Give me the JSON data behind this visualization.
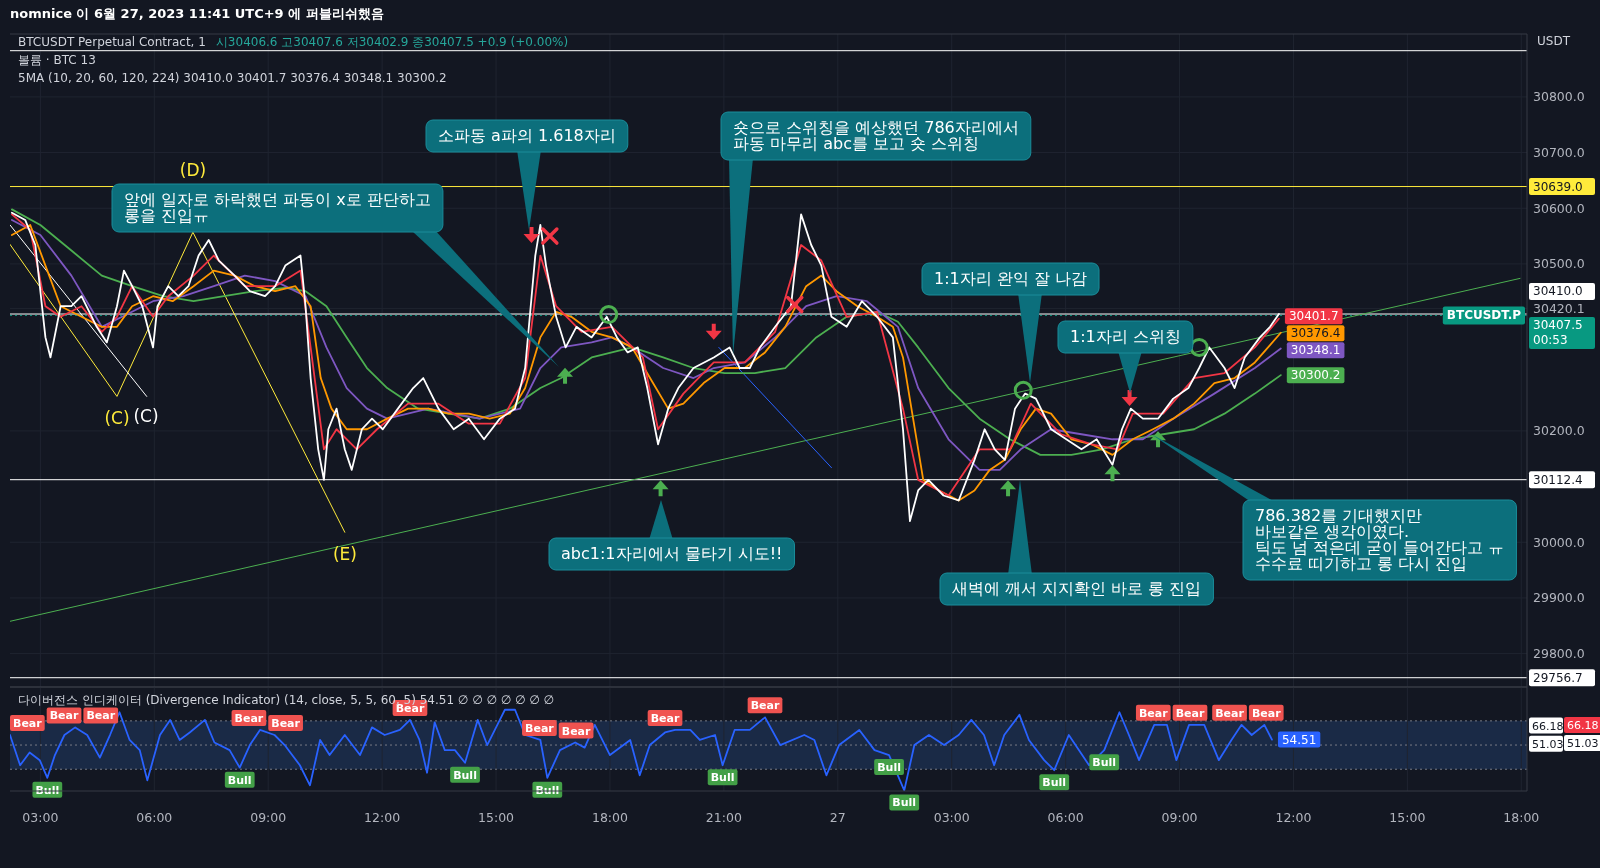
{
  "chart_data": [
    {
      "type": "line",
      "title": "BTCUSDT Perpetual Contract, 1",
      "subtitle": "시30406.6  고30407.6  저30402.9  종30407.5  +0.9 (+0.00%)",
      "ylabel": "USDT",
      "tick_labels": "y",
      "grid": true,
      "xlim": [
        "2023-06-26T02:12",
        "2023-06-27T18:09"
      ],
      "xticks": [
        "2023-06-26T03:00",
        "2023-06-26T06:00",
        "2023-06-26T09:00",
        "2023-06-26T12:00",
        "2023-06-26T15:00",
        "2023-06-26T18:00",
        "2023-06-26T21:00",
        "2023-06-27T00:00",
        "2023-06-27T03:00",
        "2023-06-27T06:00",
        "2023-06-27T09:00",
        "2023-06-27T12:00",
        "2023-06-27T15:00",
        "2023-06-27T18:00"
      ],
      "ylim": [
        29740,
        30913
      ],
      "yticks": [
        {
          "value": 29800,
          "label": "29800.0"
        },
        {
          "value": 29900,
          "label": "29900.0"
        },
        {
          "value": 30000,
          "label": "30000.0"
        },
        {
          "value": 30200,
          "label": "30200.0"
        },
        {
          "value": 30420.1,
          "label": "30420.1"
        },
        {
          "value": 30500,
          "label": "30500.0"
        },
        {
          "value": 30600,
          "label": "30600.0"
        },
        {
          "value": 30700,
          "label": "30700.0"
        },
        {
          "value": 30800,
          "label": "30800.0"
        }
      ],
      "series": [
        {
          "type": "line",
          "color": "#ffeb3b",
          "x": [
            "2023-06-26T02:12",
            "2023-06-26T05:01",
            "2023-06-26T07:01",
            "2023-06-26T11:01"
          ],
          "values": [
            30535,
            30262,
            30557,
            30018
          ]
        },
        {
          "type": "line",
          "color": "#ffffff",
          "x": [
            "2023-06-26T02:12",
            "2023-06-26T05:48"
          ],
          "values": [
            30570,
            30262
          ]
        },
        {
          "type": "line",
          "color": "#4caf50",
          "x": [
            "2023-06-26T02:12",
            "2023-06-27T17:58"
          ],
          "values": [
            29858,
            30474
          ]
        },
        {
          "type": "line",
          "color": "#2962ff",
          "x": [
            "2023-06-26T20:52",
            "2023-06-26T23:50"
          ],
          "values": [
            30350,
            30134
          ]
        },
        {
          "type": "line",
          "color": "#4caf50",
          "x": [
            "2023-06-26T02:15",
            "2023-06-26T03:00",
            "2023-06-26T03:49",
            "2023-06-26T04:37",
            "2023-06-26T05:25",
            "2023-06-26T06:14",
            "2023-06-26T07:02",
            "2023-06-26T07:50",
            "2023-06-26T08:39",
            "2023-06-26T09:27",
            "2023-06-26T09:59",
            "2023-06-26T10:32",
            "2023-06-26T11:04",
            "2023-06-26T11:36",
            "2023-06-26T12:08",
            "2023-06-26T12:57",
            "2023-06-26T13:45",
            "2023-06-26T14:34",
            "2023-06-26T15:22",
            "2023-06-26T16:10",
            "2023-06-26T16:43",
            "2023-06-26T17:31",
            "2023-06-26T18:35",
            "2023-06-26T19:24",
            "2023-06-26T20:12",
            "2023-06-26T21:01",
            "2023-06-26T21:49",
            "2023-06-26T22:37",
            "2023-06-26T23:26",
            "2023-06-27T00:14",
            "2023-06-27T01:02",
            "2023-06-27T01:35",
            "2023-06-27T02:07",
            "2023-06-27T02:55",
            "2023-06-27T03:44",
            "2023-06-27T04:32",
            "2023-06-27T05:20",
            "2023-06-27T06:09",
            "2023-06-27T06:58",
            "2023-06-27T07:46",
            "2023-06-27T08:34",
            "2023-06-27T09:23",
            "2023-06-27T10:11",
            "2023-06-27T10:59",
            "2023-06-27T11:40"
          ],
          "values": [
            30598,
            30570,
            30524,
            30479,
            30460,
            30442,
            30433,
            30442,
            30451,
            30457,
            30451,
            30424,
            30368,
            30313,
            30277,
            30240,
            30231,
            30222,
            30240,
            30277,
            30295,
            30332,
            30350,
            30332,
            30313,
            30304,
            30304,
            30313,
            30368,
            30405,
            30414,
            30396,
            30350,
            30277,
            30222,
            30185,
            30157,
            30157,
            30167,
            30185,
            30194,
            30203,
            30231,
            30267,
            30300.2
          ],
          "value_labels": [
            null,
            null,
            null,
            null,
            null,
            null,
            null,
            null,
            null,
            null,
            null,
            null,
            null,
            null,
            null,
            null,
            null,
            null,
            null,
            null,
            null,
            null,
            null,
            null,
            null,
            null,
            null,
            null,
            null,
            null,
            null,
            null,
            null,
            null,
            null,
            null,
            null,
            null,
            null,
            null,
            null,
            null,
            null,
            null,
            "30300.2"
          ]
        },
        {
          "type": "line",
          "color": "#7e57c2",
          "x": [
            "2023-06-26T02:15",
            "2023-06-26T03:00",
            "2023-06-26T03:49",
            "2023-06-26T04:37",
            "2023-06-26T05:09",
            "2023-06-26T05:58",
            "2023-06-26T06:46",
            "2023-06-26T07:34",
            "2023-06-26T08:23",
            "2023-06-26T09:11",
            "2023-06-26T09:59",
            "2023-06-26T10:32",
            "2023-06-26T11:04",
            "2023-06-26T11:36",
            "2023-06-26T12:08",
            "2023-06-26T13:13",
            "2023-06-26T14:34",
            "2023-06-26T15:38",
            "2023-06-26T16:10",
            "2023-06-26T16:43",
            "2023-06-26T17:31",
            "2023-06-26T18:03",
            "2023-06-26T18:35",
            "2023-06-26T19:24",
            "2023-06-26T20:12",
            "2023-06-26T20:44",
            "2023-06-26T21:33",
            "2023-06-26T22:21",
            "2023-06-26T23:10",
            "2023-06-26T23:58",
            "2023-06-27T00:46",
            "2023-06-27T01:35",
            "2023-06-27T02:07",
            "2023-06-27T02:55",
            "2023-06-27T03:44",
            "2023-06-27T04:16",
            "2023-06-27T04:49",
            "2023-06-27T05:37",
            "2023-06-27T06:25",
            "2023-06-27T07:14",
            "2023-06-27T08:02",
            "2023-06-27T08:50",
            "2023-06-27T09:55",
            "2023-06-27T10:59",
            "2023-06-27T11:40"
          ],
          "values": [
            30579,
            30552,
            30479,
            30387,
            30405,
            30433,
            30442,
            30460,
            30479,
            30469,
            30442,
            30350,
            30277,
            30240,
            30222,
            30240,
            30222,
            30240,
            30313,
            30350,
            30359,
            30368,
            30350,
            30313,
            30295,
            30313,
            30323,
            30368,
            30424,
            30442,
            30433,
            30387,
            30277,
            30185,
            30130,
            30130,
            30167,
            30203,
            30194,
            30185,
            30185,
            30222,
            30267,
            30313,
            30348.1
          ],
          "value_labels": [
            null,
            null,
            null,
            null,
            null,
            null,
            null,
            null,
            null,
            null,
            null,
            null,
            null,
            null,
            null,
            null,
            null,
            null,
            null,
            null,
            null,
            null,
            null,
            null,
            null,
            null,
            null,
            null,
            null,
            null,
            null,
            null,
            null,
            null,
            null,
            null,
            null,
            null,
            null,
            null,
            null,
            null,
            null,
            null,
            "30348.1"
          ]
        },
        {
          "type": "line",
          "color": "#ff9800",
          "x": [
            "2023-06-26T02:15",
            "2023-06-26T02:44",
            "2023-06-26T03:08",
            "2023-06-26T03:32",
            "2023-06-26T04:05",
            "2023-06-26T04:37",
            "2023-06-26T05:01",
            "2023-06-26T05:25",
            "2023-06-26T05:58",
            "2023-06-26T06:29",
            "2023-06-26T07:02",
            "2023-06-26T07:34",
            "2023-06-26T08:07",
            "2023-06-26T08:39",
            "2023-06-26T09:11",
            "2023-06-26T09:43",
            "2023-06-26T10:07",
            "2023-06-26T10:23",
            "2023-06-26T10:40",
            "2023-06-26T11:04",
            "2023-06-26T11:36",
            "2023-06-26T12:08",
            "2023-06-26T12:41",
            "2023-06-26T13:13",
            "2023-06-26T13:45",
            "2023-06-26T14:17",
            "2023-06-26T14:50",
            "2023-06-26T15:22",
            "2023-06-26T15:46",
            "2023-06-26T16:10",
            "2023-06-26T16:35",
            "2023-06-26T16:59",
            "2023-06-26T17:31",
            "2023-06-26T18:03",
            "2023-06-26T18:35",
            "2023-06-26T19:08",
            "2023-06-26T19:32",
            "2023-06-26T19:56",
            "2023-06-26T20:28",
            "2023-06-26T21:01",
            "2023-06-26T21:33",
            "2023-06-26T22:05",
            "2023-06-26T22:37",
            "2023-06-26T23:10",
            "2023-06-26T23:34",
            "2023-06-26T23:58",
            "2023-06-27T00:31",
            "2023-06-27T01:02",
            "2023-06-27T01:27",
            "2023-06-27T01:43",
            "2023-06-27T01:59",
            "2023-06-27T02:15",
            "2023-06-27T02:40",
            "2023-06-27T03:11",
            "2023-06-27T03:36",
            "2023-06-27T04:00",
            "2023-06-27T04:24",
            "2023-06-27T04:49",
            "2023-06-27T05:13",
            "2023-06-27T05:37",
            "2023-06-27T06:09",
            "2023-06-27T06:41",
            "2023-06-27T07:14",
            "2023-06-27T07:46",
            "2023-06-27T08:18",
            "2023-06-27T08:50",
            "2023-06-27T09:23",
            "2023-06-27T09:55",
            "2023-06-27T10:27",
            "2023-06-27T10:59",
            "2023-06-27T11:40"
          ],
          "values": [
            30552,
            30570,
            30497,
            30424,
            30405,
            30387,
            30387,
            30424,
            30442,
            30433,
            30460,
            30488,
            30479,
            30460,
            30451,
            30460,
            30424,
            30295,
            30240,
            30203,
            30203,
            30222,
            30240,
            30240,
            30231,
            30231,
            30222,
            30231,
            30277,
            30368,
            30414,
            30405,
            30378,
            30368,
            30350,
            30286,
            30240,
            30249,
            30286,
            30313,
            30313,
            30341,
            30387,
            30460,
            30479,
            30451,
            30424,
            30405,
            30387,
            30332,
            30222,
            30112,
            30093,
            30075,
            30093,
            30130,
            30148,
            30203,
            30240,
            30231,
            30185,
            30176,
            30157,
            30185,
            30203,
            30222,
            30249,
            30286,
            30295,
            30323,
            30376.4
          ],
          "value_labels": [
            null,
            null,
            null,
            null,
            null,
            null,
            null,
            null,
            null,
            null,
            null,
            null,
            null,
            null,
            null,
            null,
            null,
            null,
            null,
            null,
            null,
            null,
            null,
            null,
            null,
            null,
            null,
            null,
            null,
            null,
            null,
            null,
            null,
            null,
            null,
            null,
            null,
            null,
            null,
            null,
            null,
            null,
            null,
            null,
            null,
            null,
            null,
            null,
            null,
            null,
            null,
            null,
            null,
            null,
            null,
            null,
            null,
            null,
            null,
            null,
            null,
            null,
            null,
            null,
            null,
            null,
            null,
            null,
            null,
            null,
            "30376.4"
          ]
        },
        {
          "type": "line",
          "color": "#f23645",
          "x": [
            "2023-06-26T02:15",
            "2023-06-26T02:44",
            "2023-06-26T03:08",
            "2023-06-26T03:32",
            "2023-06-26T04:05",
            "2023-06-26T04:37",
            "2023-06-26T05:01",
            "2023-06-26T05:25",
            "2023-06-26T05:58",
            "2023-06-26T06:22",
            "2023-06-26T07:02",
            "2023-06-26T07:34",
            "2023-06-26T08:23",
            "2023-06-26T09:11",
            "2023-06-26T09:51",
            "2023-06-26T10:07",
            "2023-06-26T10:28",
            "2023-06-26T10:48",
            "2023-06-26T11:20",
            "2023-06-26T11:52",
            "2023-06-26T12:41",
            "2023-06-26T13:29",
            "2023-06-26T14:17",
            "2023-06-26T15:06",
            "2023-06-26T15:46",
            "2023-06-26T16:10",
            "2023-06-26T16:35",
            "2023-06-26T17:15",
            "2023-06-26T18:03",
            "2023-06-26T18:52",
            "2023-06-26T19:16",
            "2023-06-26T19:56",
            "2023-06-26T20:44",
            "2023-06-26T21:33",
            "2023-06-26T22:21",
            "2023-06-26T23:02",
            "2023-06-26T23:34",
            "2023-06-27T00:14",
            "2023-06-27T01:02",
            "2023-06-27T01:43",
            "2023-06-27T02:07",
            "2023-06-27T02:55",
            "2023-06-27T03:44",
            "2023-06-27T04:32",
            "2023-06-27T05:05",
            "2023-06-27T05:53",
            "2023-06-27T06:41",
            "2023-06-27T07:22",
            "2023-06-27T07:46",
            "2023-06-27T08:34",
            "2023-06-27T09:23",
            "2023-06-27T10:11",
            "2023-06-27T10:59",
            "2023-06-27T11:37"
          ],
          "values": [
            30589,
            30561,
            30424,
            30405,
            30424,
            30378,
            30405,
            30460,
            30405,
            30442,
            30479,
            30515,
            30460,
            30460,
            30488,
            30350,
            30167,
            30203,
            30167,
            30203,
            30249,
            30249,
            30213,
            30213,
            30295,
            30515,
            30424,
            30378,
            30387,
            30332,
            30203,
            30267,
            30323,
            30323,
            30378,
            30534,
            30506,
            30405,
            30414,
            30240,
            30112,
            30084,
            30167,
            30167,
            30249,
            30194,
            30176,
            30167,
            30231,
            30231,
            30295,
            30304,
            30350,
            30401.7
          ],
          "value_labels": [
            null,
            null,
            null,
            null,
            null,
            null,
            null,
            null,
            null,
            null,
            null,
            null,
            null,
            null,
            null,
            null,
            null,
            null,
            null,
            null,
            null,
            null,
            null,
            null,
            null,
            null,
            null,
            null,
            null,
            null,
            null,
            null,
            null,
            null,
            null,
            null,
            null,
            null,
            null,
            null,
            null,
            null,
            null,
            null,
            null,
            null,
            null,
            null,
            null,
            null,
            null,
            null,
            null,
            "30401.7"
          ]
        },
        {
          "type": "line",
          "color": "#ffffff",
          "x": [
            "2023-06-26T02:15",
            "2023-06-26T02:36",
            "2023-06-26T02:52",
            "2023-06-26T03:08",
            "2023-06-26T03:16",
            "2023-06-26T03:32",
            "2023-06-26T03:49",
            "2023-06-26T04:05",
            "2023-06-26T04:29",
            "2023-06-26T04:45",
            "2023-06-26T05:01",
            "2023-06-26T05:12",
            "2023-06-26T05:25",
            "2023-06-26T05:41",
            "2023-06-26T05:58",
            "2023-06-26T06:05",
            "2023-06-26T06:22",
            "2023-06-26T06:38",
            "2023-06-26T06:54",
            "2023-06-26T07:10",
            "2023-06-26T07:26",
            "2023-06-26T07:42",
            "2023-06-26T08:07",
            "2023-06-26T08:31",
            "2023-06-26T08:55",
            "2023-06-26T09:11",
            "2023-06-26T09:27",
            "2023-06-26T09:51",
            "2023-06-26T09:59",
            "2023-06-26T10:07",
            "2023-06-26T10:19",
            "2023-06-26T10:28",
            "2023-06-26T10:35",
            "2023-06-26T10:48",
            "2023-06-26T11:01",
            "2023-06-26T11:12",
            "2023-06-26T11:28",
            "2023-06-26T11:44",
            "2023-06-26T12:01",
            "2023-06-26T12:25",
            "2023-06-26T12:49",
            "2023-06-26T13:05",
            "2023-06-26T13:29",
            "2023-06-26T13:53",
            "2023-06-26T14:17",
            "2023-06-26T14:41",
            "2023-06-26T15:06",
            "2023-06-26T15:30",
            "2023-06-26T15:46",
            "2023-06-26T16:02",
            "2023-06-26T16:10",
            "2023-06-26T16:19",
            "2023-06-26T16:35",
            "2023-06-26T16:50",
            "2023-06-26T17:07",
            "2023-06-26T17:31",
            "2023-06-26T17:55",
            "2023-06-26T18:11",
            "2023-06-26T18:28",
            "2023-06-26T18:44",
            "2023-06-26T18:59",
            "2023-06-26T19:16",
            "2023-06-26T19:32",
            "2023-06-26T19:48",
            "2023-06-26T20:12",
            "2023-06-26T20:44",
            "2023-06-26T21:09",
            "2023-06-26T21:25",
            "2023-06-26T21:41",
            "2023-06-26T21:57",
            "2023-06-26T22:21",
            "2023-06-26T22:46",
            "2023-06-26T23:02",
            "2023-06-26T23:18",
            "2023-06-26T23:34",
            "2023-06-26T23:50",
            "2023-06-27T00:14",
            "2023-06-27T00:38",
            "2023-06-27T01:02",
            "2023-06-27T01:27",
            "2023-06-27T01:43",
            "2023-06-27T01:54",
            "2023-06-27T02:07",
            "2023-06-27T02:23",
            "2023-06-27T02:47",
            "2023-06-27T03:11",
            "2023-06-27T03:36",
            "2023-06-27T03:52",
            "2023-06-27T04:08",
            "2023-06-27T04:24",
            "2023-06-27T04:40",
            "2023-06-27T04:56",
            "2023-06-27T05:13",
            "2023-06-27T05:37",
            "2023-06-27T06:01",
            "2023-06-27T06:25",
            "2023-06-27T06:49",
            "2023-06-27T07:14",
            "2023-06-27T07:29",
            "2023-06-27T07:43",
            "2023-06-27T08:02",
            "2023-06-27T08:26",
            "2023-06-27T08:50",
            "2023-06-27T09:14",
            "2023-06-27T09:31",
            "2023-06-27T09:47",
            "2023-06-27T10:11",
            "2023-06-27T10:27",
            "2023-06-27T10:43",
            "2023-06-27T11:07",
            "2023-06-27T11:23",
            "2023-06-27T11:37"
          ],
          "values": [
            30592,
            30579,
            30534,
            30368,
            30332,
            30424,
            30424,
            30442,
            30387,
            30359,
            30424,
            30488,
            30460,
            30424,
            30350,
            30424,
            30460,
            30442,
            30460,
            30515,
            30543,
            30506,
            30479,
            30451,
            30442,
            30460,
            30497,
            30515,
            30424,
            30295,
            30167,
            30112,
            30203,
            30240,
            30167,
            30130,
            30203,
            30222,
            30203,
            30240,
            30277,
            30295,
            30240,
            30203,
            30222,
            30185,
            30222,
            30240,
            30313,
            30515,
            30570,
            30497,
            30405,
            30350,
            30387,
            30368,
            30405,
            30368,
            30341,
            30350,
            30277,
            30176,
            30240,
            30277,
            30313,
            30332,
            30350,
            30313,
            30313,
            30350,
            30387,
            30424,
            30589,
            30534,
            30497,
            30405,
            30387,
            30433,
            30405,
            30368,
            30203,
            30038,
            30093,
            30112,
            30084,
            30075,
            30148,
            30203,
            30167,
            30148,
            30240,
            30267,
            30258,
            30203,
            30185,
            30167,
            30185,
            30139,
            30203,
            30240,
            30222,
            30222,
            30258,
            30277,
            30313,
            30350,
            30313,
            30277,
            30332,
            30368,
            30387,
            30410
          ]
        },
        {
          "type": "scatter",
          "marker": "triangle",
          "color": "#f23645",
          "x": [
            "2023-06-26T15:56",
            "2023-06-26T20:44",
            "2023-06-27T07:41"
          ],
          "values": [
            30552,
            30378,
            30259
          ]
        },
        {
          "type": "scatter",
          "marker": "cross",
          "color": "#f23645",
          "x": [
            "2023-06-26T16:25",
            "2023-06-26T22:52"
          ],
          "values": [
            30550,
            30427
          ]
        },
        {
          "type": "scatter",
          "marker": "circle",
          "color": "#4caf50",
          "x": [
            "2023-06-26T17:58",
            "2023-06-27T04:53",
            "2023-06-27T09:31"
          ],
          "values": [
            30409,
            30273,
            30350
          ]
        },
        {
          "type": "scatter",
          "marker": "triangle",
          "color": "#4caf50",
          "x": [
            "2023-06-26T16:49",
            "2023-06-26T19:20",
            "2023-06-27T04:29",
            "2023-06-27T07:14",
            "2023-06-27T08:26"
          ],
          "values": [
            30299,
            30097,
            30097,
            30124,
            30185
          ]
        }
      ],
      "ref_lines": [
        {
          "axis": "y",
          "value": 30883,
          "color": "#ffffff"
        },
        {
          "axis": "y",
          "value": 30639.0,
          "label": "30639.0",
          "color": "#ffeb3b"
        },
        {
          "axis": "y",
          "value": 30410.0,
          "label": "30410.0",
          "color": "#ffffff"
        },
        {
          "axis": "y",
          "value": 30407.5,
          "label": "30407.5\n00:53",
          "color": "#089981",
          "line_style": "dotted"
        },
        {
          "axis": "y",
          "value": 30112.4,
          "label": "30112.4",
          "color": "#ffffff"
        },
        {
          "axis": "y",
          "value": 29756.7,
          "label": "29756.7",
          "color": "#ffffff"
        }
      ],
      "annotations": [
        "nomnice 이 6월 27, 2023 11:41 UTC+9 에 퍼블리쉬했음",
        "볼륨 · BTC  13",
        "5MA (10, 20, 60, 120, 224)  30410.0  30401.7  30376.4  30348.1  30300.2",
        {
          "text": "BTCUSDT.P",
          "y": 30407.5
        },
        "앞에 일자로 하락했던 파동이 x로 판단하고\n롱을 진입ㅠ",
        "소파동 a파의 1.618자리",
        "숏으로 스위칭을 예상했던 786자리에서\n파동 마무리 abc를 보고 숏 스위칭",
        "1:1자리 완익 잘 나감",
        "1:1자리 스위칭",
        "abc1:1자리에서 물타기 시도!!",
        "새벽에 깨서 지지확인 바로 롱 진입",
        "786.382를 기대했지만\n바보같은 생각이였다.\n틱도 넘 적은데 굳이 들어간다고 ㅠ\n수수료 띠기하고 롱 다시 진입",
        "(C)",
        "(C)",
        "(D)",
        "(E)"
      ]
    },
    {
      "type": "line",
      "title": "다이버전스 인디케이터 (Divergence Indicator) (14, close, 5, 5, 60, 5)  54.51  ∅ ∅ ∅ ∅ ∅ ∅ ∅",
      "grid": "x",
      "xlim": [
        "2023-06-26T02:12",
        "2023-06-27T18:09"
      ],
      "xticks": [
        {
          "value": "2023-06-26T03:00",
          "label": "03:00"
        },
        {
          "value": "2023-06-26T06:00",
          "label": "06:00"
        },
        {
          "value": "2023-06-26T09:00",
          "label": "09:00"
        },
        {
          "value": "2023-06-26T12:00",
          "label": "12:00"
        },
        {
          "value": "2023-06-26T15:00",
          "label": "15:00"
        },
        {
          "value": "2023-06-26T18:00",
          "label": "18:00"
        },
        {
          "value": "2023-06-26T21:00",
          "label": "21:00"
        },
        {
          "value": "2023-06-27T00:00",
          "label": "27"
        },
        {
          "value": "2023-06-27T03:00",
          "label": "03:00"
        },
        {
          "value": "2023-06-27T06:00",
          "label": "06:00"
        },
        {
          "value": "2023-06-27T09:00",
          "label": "09:00"
        },
        {
          "value": "2023-06-27T12:00",
          "label": "12:00"
        },
        {
          "value": "2023-06-27T15:00",
          "label": "15:00"
        },
        {
          "value": "2023-06-27T18:00",
          "label": "18:00"
        }
      ],
      "ylim": [
        12,
        98
      ],
      "yticks": [
        66.18,
        51.03
      ],
      "bands": [
        {
          "axis": "y",
          "from": 30,
          "to": 70,
          "color": "#1a2a46"
        }
      ],
      "ref_lines": [
        {
          "axis": "y",
          "value": 70,
          "color": "#787b86",
          "line_style": "dotted"
        },
        {
          "axis": "y",
          "value": 50,
          "color": "#787b86",
          "line_style": "dotted"
        },
        {
          "axis": "y",
          "value": 30,
          "color": "#787b86",
          "line_style": "dotted"
        }
      ],
      "series": [
        {
          "type": "line",
          "color": "#2962ff",
          "x": [
            "2023-06-26T02:12",
            "2023-06-26T02:28",
            "2023-06-26T02:43",
            "2023-06-26T02:59",
            "2023-06-26T03:11",
            "2023-06-26T03:23",
            "2023-06-26T03:38",
            "2023-06-26T03:55",
            "2023-06-26T04:14",
            "2023-06-26T04:34",
            "2023-06-26T04:50",
            "2023-06-26T05:05",
            "2023-06-26T05:21",
            "2023-06-26T05:37",
            "2023-06-26T05:49",
            "2023-06-26T06:09",
            "2023-06-26T06:25",
            "2023-06-26T06:40",
            "2023-06-26T06:56",
            "2023-06-26T07:20",
            "2023-06-26T07:35",
            "2023-06-26T07:59",
            "2023-06-26T08:15",
            "2023-06-26T08:31",
            "2023-06-26T08:47",
            "2023-06-26T09:10",
            "2023-06-26T09:26",
            "2023-06-26T09:50",
            "2023-06-26T10:06",
            "2023-06-26T10:22",
            "2023-06-26T10:37",
            "2023-06-26T11:01",
            "2023-06-26T11:25",
            "2023-06-26T11:44",
            "2023-06-26T12:04",
            "2023-06-26T12:28",
            "2023-06-26T12:44",
            "2023-06-26T12:59",
            "2023-06-26T13:11",
            "2023-06-26T13:23",
            "2023-06-26T13:39",
            "2023-06-26T13:55",
            "2023-06-26T14:11",
            "2023-06-26T14:31",
            "2023-06-26T14:46",
            "2023-06-26T15:06",
            "2023-06-26T15:14",
            "2023-06-26T15:30",
            "2023-06-26T15:46",
            "2023-06-26T16:10",
            "2023-06-26T16:21",
            "2023-06-26T16:41",
            "2023-06-26T17:05",
            "2023-06-26T17:20",
            "2023-06-26T17:36",
            "2023-06-26T18:00",
            "2023-06-26T18:32",
            "2023-06-26T18:47",
            "2023-06-26T19:03",
            "2023-06-26T19:27",
            "2023-06-26T19:43",
            "2023-06-26T20:07",
            "2023-06-26T20:22",
            "2023-06-26T20:46",
            "2023-06-26T20:58",
            "2023-06-26T21:17",
            "2023-06-26T21:41",
            "2023-06-26T22:05",
            "2023-06-26T22:29",
            "2023-06-26T23:07",
            "2023-06-26T23:23",
            "2023-06-26T23:42",
            "2023-06-27T00:02",
            "2023-06-27T00:34",
            "2023-06-27T00:58",
            "2023-06-27T01:21",
            "2023-06-27T01:45",
            "2023-06-27T02:01",
            "2023-06-27T02:24",
            "2023-06-27T02:48",
            "2023-06-27T03:11",
            "2023-06-27T03:31",
            "2023-06-27T03:51",
            "2023-06-27T04:07",
            "2023-06-27T04:23",
            "2023-06-27T04:47",
            "2023-06-27T05:02",
            "2023-06-27T05:26",
            "2023-06-27T05:42",
            "2023-06-27T06:05",
            "2023-06-27T06:37",
            "2023-06-27T07:01",
            "2023-06-27T07:25",
            "2023-06-27T07:40",
            "2023-06-27T07:56",
            "2023-06-27T08:20",
            "2023-06-27T08:40",
            "2023-06-27T08:55",
            "2023-06-27T09:15",
            "2023-06-27T09:39",
            "2023-06-27T10:02",
            "2023-06-27T10:22",
            "2023-06-27T10:38",
            "2023-06-27T10:54",
            "2023-06-27T11:14",
            "2023-06-27T11:26"
          ],
          "values": [
            58.3,
            33.3,
            43.8,
            37.5,
            22.9,
            41.7,
            58.3,
            64.6,
            58.3,
            39.6,
            58.3,
            77.1,
            54.2,
            45.8,
            20.8,
            58.3,
            70.8,
            54.2,
            60.4,
            70.8,
            52.1,
            45.8,
            31.3,
            50.0,
            62.5,
            58.3,
            50.0,
            33.3,
            16.7,
            54.2,
            41.7,
            58.3,
            41.7,
            64.6,
            58.3,
            62.5,
            70.8,
            54.2,
            27.1,
            68.8,
            45.8,
            45.8,
            35.4,
            70.8,
            50.0,
            70.8,
            79.2,
            79.2,
            58.3,
            54.2,
            22.9,
            45.8,
            52.1,
            47.9,
            66.7,
            41.7,
            54.2,
            25.0,
            50.0,
            60.4,
            62.5,
            62.5,
            54.2,
            58.3,
            33.3,
            62.5,
            62.5,
            72.9,
            50.0,
            58.3,
            54.2,
            25.0,
            50.0,
            62.5,
            45.8,
            41.7,
            12.5,
            50.0,
            58.3,
            50.0,
            58.3,
            70.8,
            58.3,
            33.3,
            58.3,
            75.0,
            54.2,
            37.5,
            29.2,
            58.3,
            33.3,
            45.8,
            77.1,
            58.3,
            37.5,
            66.7,
            66.7,
            37.5,
            66.7,
            66.7,
            37.5,
            54.2,
            66.7,
            58.3,
            66.7,
            54.51
          ],
          "value_labels": [
            null,
            null,
            null,
            null,
            null,
            null,
            null,
            null,
            null,
            null,
            null,
            null,
            null,
            null,
            null,
            null,
            null,
            null,
            null,
            null,
            null,
            null,
            null,
            null,
            null,
            null,
            null,
            null,
            null,
            null,
            null,
            null,
            null,
            null,
            null,
            null,
            null,
            null,
            null,
            null,
            null,
            null,
            null,
            null,
            null,
            null,
            null,
            null,
            null,
            null,
            null,
            null,
            null,
            null,
            null,
            null,
            null,
            null,
            null,
            null,
            null,
            null,
            null,
            null,
            null,
            null,
            null,
            null,
            null,
            null,
            null,
            null,
            null,
            null,
            null,
            null,
            null,
            null,
            null,
            null,
            null,
            null,
            null,
            null,
            null,
            null,
            null,
            null,
            null,
            null,
            null,
            null,
            null,
            null,
            null,
            null,
            null,
            null,
            null,
            null,
            null,
            null,
            null,
            null,
            null,
            "54.51"
          ]
        }
      ],
      "annotations": [
        "66.18",
        "51.03",
        {
          "text": "Bear",
          "x": "2023-06-26T02:12",
          "y": 58.3
        },
        {
          "text": "Bear",
          "x": "2023-06-26T03:38",
          "y": 58.3
        },
        {
          "text": "Bear",
          "x": "2023-06-26T04:14",
          "y": 58.3
        },
        {
          "text": "Bear",
          "x": "2023-06-26T08:31",
          "y": 50.0
        },
        {
          "text": "Bear",
          "x": "2023-06-26T09:26",
          "y": 50.0
        },
        {
          "text": "Bear",
          "x": "2023-06-26T12:44",
          "y": 70.8
        },
        {
          "text": "Bear",
          "x": "2023-06-26T16:10",
          "y": 54.2
        },
        {
          "text": "Bear",
          "x": "2023-06-26T17:05",
          "y": 52.1
        },
        {
          "text": "Bear",
          "x": "2023-06-26T19:27",
          "y": 60.4
        },
        {
          "text": "Bear",
          "x": "2023-06-26T22:05",
          "y": 72.9
        },
        {
          "text": "Bear",
          "x": "2023-06-27T08:20",
          "y": 66.7
        },
        {
          "text": "Bear",
          "x": "2023-06-27T09:15",
          "y": 66.7
        },
        {
          "text": "Bear",
          "x": "2023-06-27T10:22",
          "y": 54.2
        },
        {
          "text": "Bear",
          "x": "2023-06-27T11:14",
          "y": 66.7
        },
        {
          "text": "Bull",
          "x": "2023-06-26T03:11",
          "y": 22.9
        },
        {
          "text": "Bull",
          "x": "2023-06-26T08:15",
          "y": 31.3
        },
        {
          "text": "Bull",
          "x": "2023-06-26T14:11",
          "y": 35.4
        },
        {
          "text": "Bull",
          "x": "2023-06-26T16:21",
          "y": 22.9
        },
        {
          "text": "Bull",
          "x": "2023-06-26T20:58",
          "y": 33.3
        },
        {
          "text": "Bull",
          "x": "2023-06-27T01:21",
          "y": 41.7
        },
        {
          "text": "Bull",
          "x": "2023-06-27T01:45",
          "y": 12.5
        },
        {
          "text": "Bull",
          "x": "2023-06-27T05:42",
          "y": 29.2
        },
        {
          "text": "Bull",
          "x": "2023-06-27T07:01",
          "y": 45.8
        }
      ]
    }
  ]
}
